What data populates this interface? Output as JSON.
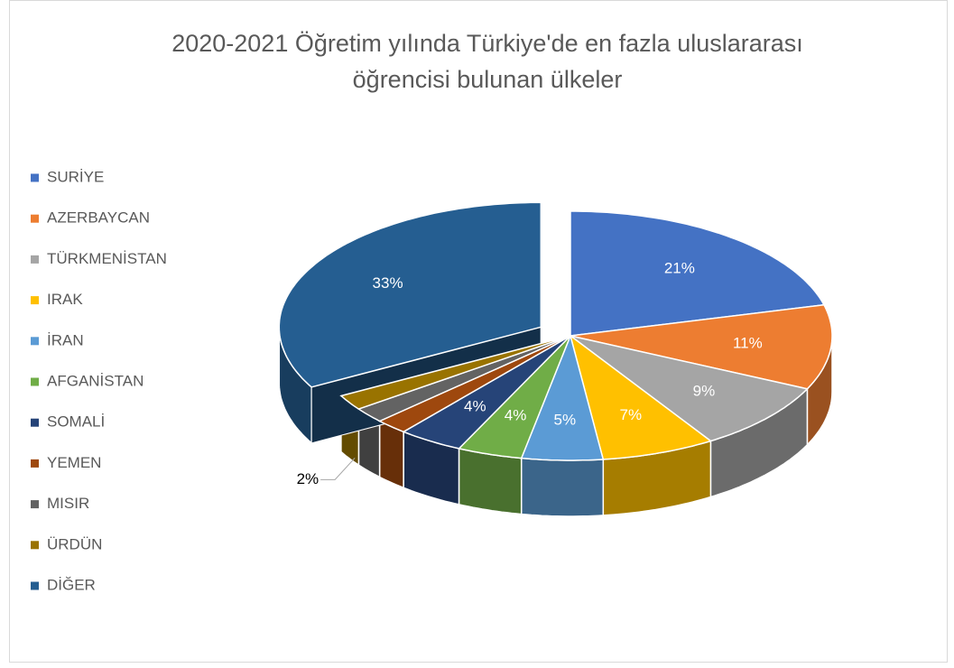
{
  "chart_data": {
    "type": "pie3d",
    "title": "2020-2021 Öğretim yılında Türkiye'de en fazla uluslararası öğrencisi bulunan ülkeler",
    "categories": [
      "SURİYE",
      "AZERBAYCAN",
      "TÜRKMENİSTAN",
      "IRAK",
      "İRAN",
      "AFGANİSTAN",
      "SOMALİ",
      "YEMEN",
      "MISIR",
      "ÜRDÜN",
      "DİĞER"
    ],
    "values": [
      21,
      11,
      9,
      7,
      5,
      4,
      4,
      2,
      2,
      2,
      33
    ],
    "value_labels": [
      "21%",
      "11%",
      "9%",
      "7%",
      "5%",
      "4%",
      "4%",
      null,
      null,
      "2%",
      "33%"
    ],
    "colors": [
      "#4472c4",
      "#ed7d31",
      "#a5a5a5",
      "#ffc000",
      "#5b9bd5",
      "#70ad47",
      "#264478",
      "#9e480e",
      "#636363",
      "#997300",
      "#255e91"
    ],
    "exploded": [
      "DİĞER"
    ],
    "legend": "left"
  }
}
